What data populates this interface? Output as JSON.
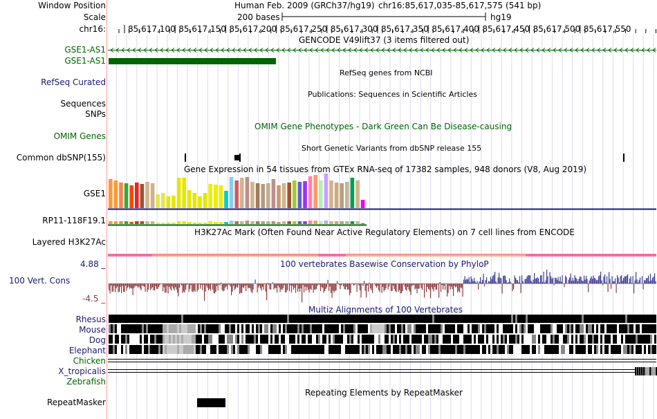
{
  "header": {
    "window_position_label": "Window Position",
    "scale_label": "Scale",
    "chrom_label": "chr16:",
    "assembly": "Human Feb. 2009 (GRCh37/hg19)",
    "position": "chr16:85,617,035-85,617,575 (541 bp)",
    "scale_text": "200 bases",
    "db": "hg19",
    "ruler_ticks": [
      "85,617,100",
      "85,617,150",
      "85,617,200",
      "85,617,250",
      "85,617,300",
      "85,617,350",
      "85,617,400",
      "85,617,450",
      "85,617,500",
      "85,617,550"
    ]
  },
  "tracks": {
    "gencode": {
      "title": "GENCODE V49lift37 (3 items filtered out)",
      "items": [
        "GSE1-AS1",
        "GSE1-AS1"
      ]
    },
    "refseq": {
      "title": "RefSeq genes from NCBI",
      "label": "RefSeq Curated"
    },
    "publications": {
      "title": "Publications: Sequences in Scientific Articles",
      "label": "Sequences"
    },
    "snps_label": "SNPs",
    "omim": {
      "title": "OMIM Gene Phenotypes - Dark Green Can Be Disease-causing",
      "label": "OMIM Genes"
    },
    "dbsnp": {
      "title": "Short Genetic Variants from dbSNP release 155",
      "label": "Common dbSNP(155)"
    },
    "gtex": {
      "title": "Gene Expression in 54 tissues from GTEx RNA-seq of 17382 samples, 948 donors (V8, Aug 2019)",
      "genes": [
        "GSE1",
        "RP11-118F19.1"
      ]
    },
    "h3k27ac": {
      "title": "H3K27Ac Mark (Often Found Near Active Regulatory Elements) on 7 cell lines from ENCODE",
      "label": "Layered H3K27Ac"
    },
    "phylop": {
      "title": "100 vertebrates Basewise Conservation by PhyloP",
      "label": "100 Vert. Cons",
      "max": "4.88 _",
      "min": "-4.5 _"
    },
    "multiz": {
      "title": "Multiz Alignments of 100 Vertebrates",
      "species": [
        "Rhesus",
        "Mouse",
        "Dog",
        "Elephant",
        "Chicken",
        "X_tropicalis",
        "Zebrafish"
      ]
    },
    "repeatmasker": {
      "title": "Repeating Elements by RepeatMasker",
      "label": "RepeatMasker"
    }
  },
  "colors": {
    "gene_green": "#006400",
    "navy_label": "#191970",
    "conservation_pos": "#3c3c91",
    "conservation_neg": "#8b3a3a",
    "divider": "#ff9a9a"
  }
}
